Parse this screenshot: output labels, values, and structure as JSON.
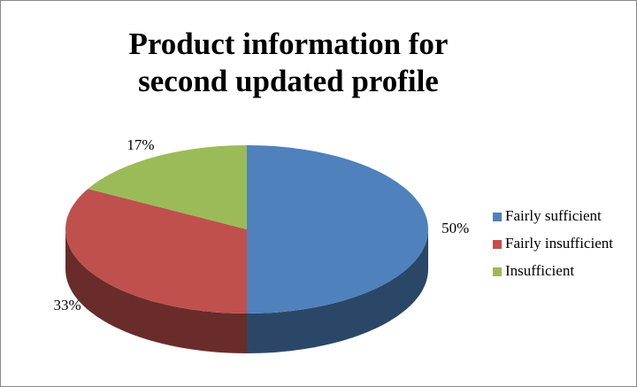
{
  "chart_data": {
    "type": "pie",
    "title": "Product information for second updated profile",
    "categories": [
      "Fairly sufficient",
      "Fairly insufficient",
      "Insufficient"
    ],
    "values": [
      50,
      33,
      17
    ],
    "value_labels": [
      "50%",
      "33%",
      "17%"
    ],
    "colors": [
      "#4f81bd",
      "#c0504d",
      "#9bbb59"
    ]
  }
}
